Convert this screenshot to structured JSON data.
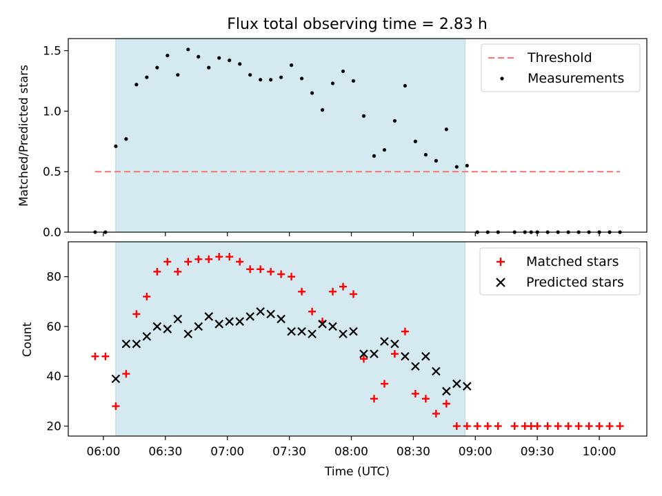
{
  "title": "Flux total observing time = 2.83 h",
  "chart_data": [
    {
      "type": "scatter",
      "ylabel": "Matched/Predicted stars",
      "xlim": [
        "05:43",
        "10:23"
      ],
      "ylim": [
        0,
        1.6
      ],
      "yticks": [
        0.0,
        0.5,
        1.0,
        1.5
      ],
      "ytick_labels": [
        "0.0",
        "0.5",
        "1.0",
        "1.5"
      ],
      "grid": false,
      "legend": "top-right",
      "shaded_interval": [
        "06:06",
        "08:55"
      ],
      "shade_color": "#d4eaf0",
      "threshold": {
        "name": "Threshold",
        "y": 0.5,
        "x": [
          "05:56",
          "10:10"
        ],
        "color": "#f47a7a",
        "style": "dashed"
      },
      "series": [
        {
          "name": "Measurements",
          "marker": "dot",
          "color": "#000000",
          "x": [
            "05:56",
            "06:01",
            "06:06",
            "06:11",
            "06:16",
            "06:21",
            "06:26",
            "06:31",
            "06:36",
            "06:41",
            "06:46",
            "06:51",
            "06:56",
            "07:01",
            "07:06",
            "07:11",
            "07:16",
            "07:21",
            "07:26",
            "07:31",
            "07:36",
            "07:41",
            "07:46",
            "07:51",
            "07:56",
            "08:01",
            "08:06",
            "08:11",
            "08:16",
            "08:21",
            "08:26",
            "08:31",
            "08:36",
            "08:41",
            "08:46",
            "08:51",
            "08:56",
            "09:01",
            "09:06",
            "09:11",
            "09:19",
            "09:24",
            "09:27",
            "09:30",
            "09:35",
            "09:40",
            "09:45",
            "09:50",
            "09:55",
            "10:00",
            "10:05",
            "10:10"
          ],
          "y": [
            0,
            0,
            0.71,
            0.77,
            1.22,
            1.28,
            1.36,
            1.46,
            1.3,
            1.51,
            1.45,
            1.36,
            1.44,
            1.42,
            1.39,
            1.3,
            1.26,
            1.26,
            1.28,
            1.38,
            1.27,
            1.15,
            1.01,
            1.23,
            1.33,
            1.25,
            0.96,
            0.63,
            0.68,
            0.92,
            1.21,
            0.75,
            0.64,
            0.59,
            0.85,
            0.54,
            0.55,
            0,
            0,
            0,
            0,
            0,
            0,
            0,
            0,
            0,
            0,
            0,
            0,
            0,
            0,
            0
          ]
        }
      ]
    },
    {
      "type": "scatter",
      "xlabel": "Time (UTC)",
      "ylabel": "Count",
      "xlim": [
        "05:43",
        "10:23"
      ],
      "xticks": [
        "06:00",
        "06:30",
        "07:00",
        "07:30",
        "08:00",
        "08:30",
        "09:00",
        "09:30",
        "10:00"
      ],
      "ylim": [
        16,
        94
      ],
      "yticks": [
        20,
        40,
        60,
        80
      ],
      "ytick_labels": [
        "20",
        "40",
        "60",
        "80"
      ],
      "grid": false,
      "legend": "top-right",
      "shaded_interval": [
        "06:06",
        "08:55"
      ],
      "series": [
        {
          "name": "Matched stars",
          "marker": "plus",
          "color": "#ff0000",
          "x": [
            "05:56",
            "06:01",
            "06:06",
            "06:11",
            "06:16",
            "06:21",
            "06:26",
            "06:31",
            "06:36",
            "06:41",
            "06:46",
            "06:51",
            "06:56",
            "07:01",
            "07:06",
            "07:11",
            "07:16",
            "07:21",
            "07:26",
            "07:31",
            "07:36",
            "07:41",
            "07:46",
            "07:51",
            "07:56",
            "08:01",
            "08:06",
            "08:11",
            "08:16",
            "08:21",
            "08:26",
            "08:31",
            "08:36",
            "08:41",
            "08:46",
            "08:51",
            "08:56",
            "09:01",
            "09:06",
            "09:11",
            "09:19",
            "09:24",
            "09:27",
            "09:30",
            "09:35",
            "09:40",
            "09:45",
            "09:50",
            "09:55",
            "10:00",
            "10:05",
            "10:10"
          ],
          "y": [
            48,
            48,
            28,
            41,
            65,
            72,
            82,
            86,
            82,
            86,
            87,
            87,
            88,
            88,
            86,
            83,
            83,
            82,
            81,
            80,
            74,
            66,
            62,
            74,
            76,
            73,
            47,
            31,
            37,
            49,
            58,
            33,
            31,
            25,
            29,
            20,
            20,
            20,
            20,
            20,
            20,
            20,
            20,
            20,
            20,
            20,
            20,
            20,
            20,
            20,
            20,
            20
          ]
        },
        {
          "name": "Predicted stars",
          "marker": "x",
          "color": "#000000",
          "x": [
            "06:06",
            "06:11",
            "06:16",
            "06:21",
            "06:26",
            "06:31",
            "06:36",
            "06:41",
            "06:46",
            "06:51",
            "06:56",
            "07:01",
            "07:06",
            "07:11",
            "07:16",
            "07:21",
            "07:26",
            "07:31",
            "07:36",
            "07:41",
            "07:46",
            "07:51",
            "07:56",
            "08:01",
            "08:06",
            "08:11",
            "08:16",
            "08:21",
            "08:26",
            "08:31",
            "08:36",
            "08:41",
            "08:46",
            "08:51",
            "08:56"
          ],
          "y": [
            39,
            53,
            53,
            56,
            60,
            59,
            63,
            57,
            60,
            64,
            61,
            62,
            62,
            64,
            66,
            65,
            63,
            58,
            58,
            57,
            61,
            60,
            57,
            58,
            49,
            49,
            54,
            53,
            48,
            44,
            48,
            42,
            34,
            37,
            36
          ]
        }
      ]
    }
  ]
}
